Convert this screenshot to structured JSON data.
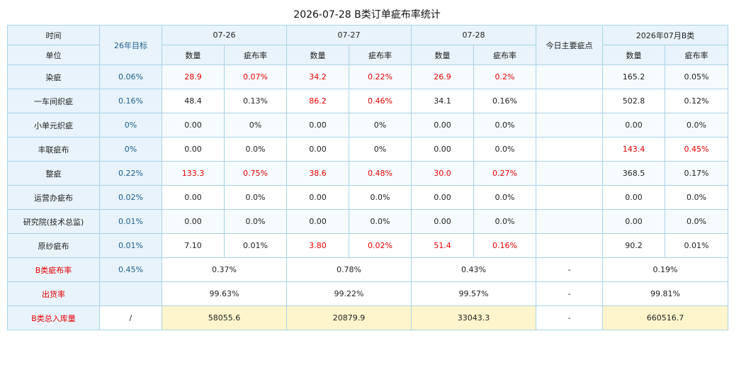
{
  "title": "2026-07-28 B类订单疵布率统计",
  "header": {
    "time": "时间",
    "unit": "单位",
    "target": "26年目标",
    "d1": "07-26",
    "d2": "07-27",
    "d3": "07-28",
    "main_defect": "今日主要疵点",
    "month": "2026年07月B类",
    "qty": "数量",
    "rate": "疵布率"
  },
  "rows": [
    {
      "name": "染疵",
      "target": "0.06%",
      "v": [
        "28.9",
        "0.07%",
        "34.2",
        "0.22%",
        "26.9",
        "0.2%"
      ],
      "main": "",
      "m": [
        "165.2",
        "0.05%"
      ],
      "red": [
        true,
        true,
        true,
        true,
        true,
        true,
        false,
        false
      ]
    },
    {
      "name": "一车间织疵",
      "target": "0.16%",
      "v": [
        "48.4",
        "0.13%",
        "86.2",
        "0.46%",
        "34.1",
        "0.16%"
      ],
      "main": "",
      "m": [
        "502.8",
        "0.12%"
      ],
      "red": [
        false,
        false,
        true,
        true,
        false,
        false,
        false,
        false
      ]
    },
    {
      "name": "小单元织疵",
      "target": "0%",
      "v": [
        "0.00",
        "0%",
        "0.00",
        "0%",
        "0.00",
        "0.0%"
      ],
      "main": "",
      "m": [
        "0.00",
        "0.0%"
      ],
      "red": [
        false,
        false,
        false,
        false,
        false,
        false,
        false,
        false
      ]
    },
    {
      "name": "丰联疵布",
      "target": "0%",
      "v": [
        "0.00",
        "0.0%",
        "0.00",
        "0%",
        "0.00",
        "0.0%"
      ],
      "main": "",
      "m": [
        "143.4",
        "0.45%"
      ],
      "red": [
        false,
        false,
        false,
        false,
        false,
        false,
        true,
        true
      ]
    },
    {
      "name": "整疵",
      "target": "0.22%",
      "v": [
        "133.3",
        "0.75%",
        "38.6",
        "0.48%",
        "30.0",
        "0.27%"
      ],
      "main": "",
      "m": [
        "368.5",
        "0.17%"
      ],
      "red": [
        true,
        true,
        true,
        true,
        true,
        true,
        false,
        false
      ]
    },
    {
      "name": "运营办疵布",
      "target": "0.02%",
      "v": [
        "0.00",
        "0.0%",
        "0.00",
        "0.0%",
        "0.00",
        "0.0%"
      ],
      "main": "",
      "m": [
        "0.00",
        "0.0%"
      ],
      "red": [
        false,
        false,
        false,
        false,
        false,
        false,
        false,
        false
      ]
    },
    {
      "name": "研究院(技术总监)",
      "target": "0.01%",
      "v": [
        "0.00",
        "0.0%",
        "0.00",
        "0.0%",
        "0.00",
        "0.0%"
      ],
      "main": "",
      "m": [
        "0.00",
        "0.0%"
      ],
      "red": [
        false,
        false,
        false,
        false,
        false,
        false,
        false,
        false
      ]
    },
    {
      "name": "原纱疵布",
      "target": "0.01%",
      "v": [
        "7.10",
        "0.01%",
        "3.80",
        "0.02%",
        "51.4",
        "0.16%"
      ],
      "main": "",
      "m": [
        "90.2",
        "0.01%"
      ],
      "red": [
        false,
        false,
        true,
        true,
        true,
        true,
        false,
        false
      ]
    }
  ],
  "summary": [
    {
      "name": "B类疵布率",
      "target": "0.45%",
      "d": [
        "0.37%",
        "0.78%",
        "0.43%"
      ],
      "main": "-",
      "m": "0.19%"
    },
    {
      "name": "出货率",
      "target": "",
      "d": [
        "99.63%",
        "99.22%",
        "99.57%"
      ],
      "main": "-",
      "m": "99.81%"
    },
    {
      "name": "B类总入库量",
      "target": "/",
      "d": [
        "58055.6",
        "20879.9",
        "33043.3"
      ],
      "main": "-",
      "m": "660516.7"
    }
  ],
  "colors": {
    "red": "#e60000",
    "header_bg": "#e8f3fb",
    "border": "#a9d3e6",
    "highlight": "#fff5cc"
  }
}
